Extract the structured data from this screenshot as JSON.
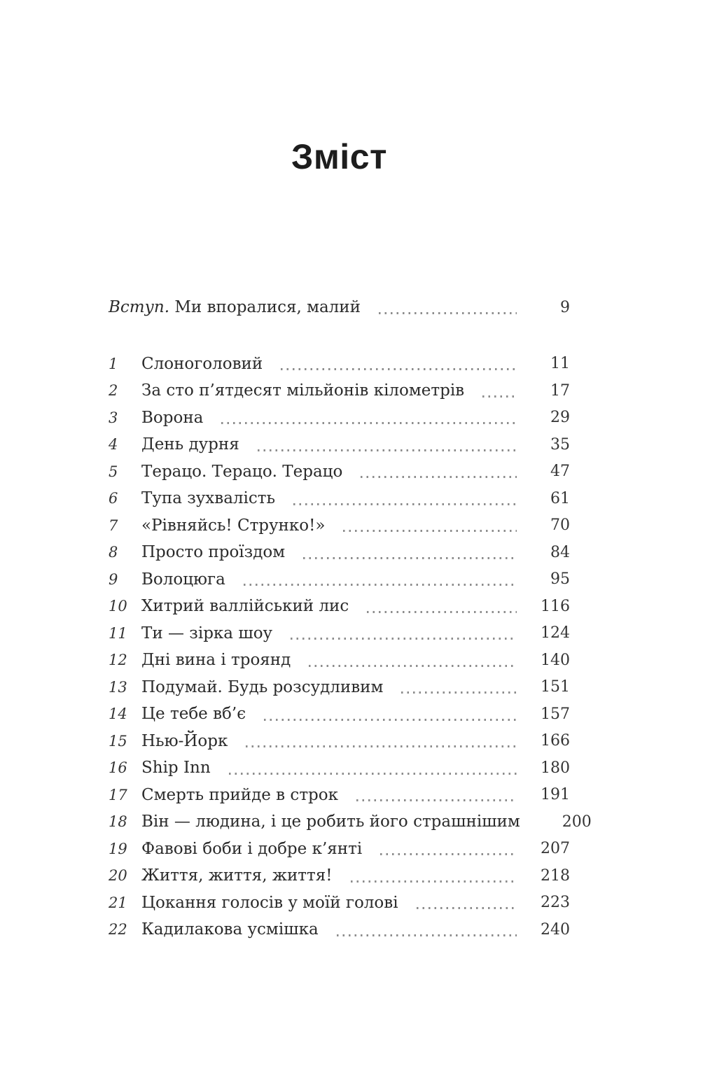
{
  "document": {
    "title": "Зміст",
    "intro_entry": {
      "prefix": "Вступ.",
      "title": " Ми впоралися, малий",
      "page": "9"
    },
    "entries": [
      {
        "num": "1",
        "title": "Слоноголовий",
        "page": "11"
      },
      {
        "num": "2",
        "title": "За сто п’ятдесят мільйонів кілометрів",
        "page": "17"
      },
      {
        "num": "3",
        "title": "Ворона",
        "page": "29"
      },
      {
        "num": "4",
        "title": "День дурня",
        "page": "35"
      },
      {
        "num": "5",
        "title": "Терацо. Терацо. Терацо",
        "page": "47"
      },
      {
        "num": "6",
        "title": "Тупа зухвалість",
        "page": "61"
      },
      {
        "num": "7",
        "title": "«Рівняйсь! Струнко!»",
        "page": "70"
      },
      {
        "num": "8",
        "title": "Просто проїздом",
        "page": "84"
      },
      {
        "num": "9",
        "title": "Волоцюга",
        "page": "95"
      },
      {
        "num": "10",
        "title": "Хитрий валлійський лис",
        "page": "116"
      },
      {
        "num": "11",
        "title": "Ти — зірка шоу",
        "page": "124"
      },
      {
        "num": "12",
        "title": "Дні вина і троянд",
        "page": "140"
      },
      {
        "num": "13",
        "title": "Подумай. Будь розсудливим",
        "page": "151"
      },
      {
        "num": "14",
        "title": "Це тебе вб’є",
        "page": "157"
      },
      {
        "num": "15",
        "title": "Нью-Йорк",
        "page": "166"
      },
      {
        "num": "16",
        "title": "Ship Inn",
        "page": "180"
      },
      {
        "num": "17",
        "title": "Смерть прийде в строк",
        "page": "191"
      },
      {
        "num": "18",
        "title": "Він — людина, і це робить його страшнішим",
        "page": "200"
      },
      {
        "num": "19",
        "title": "Фавові боби і добре к’янті",
        "page": "207"
      },
      {
        "num": "20",
        "title": "Життя, життя, життя!",
        "page": "218"
      },
      {
        "num": "21",
        "title": "Цокання голосів у моїй голові",
        "page": "223"
      },
      {
        "num": "22",
        "title": "Кадилакова усмішка",
        "page": "240"
      }
    ],
    "colors": {
      "background": "#ffffff",
      "text": "#2e2e2e",
      "leader_dots": "#8d8d8d"
    }
  }
}
